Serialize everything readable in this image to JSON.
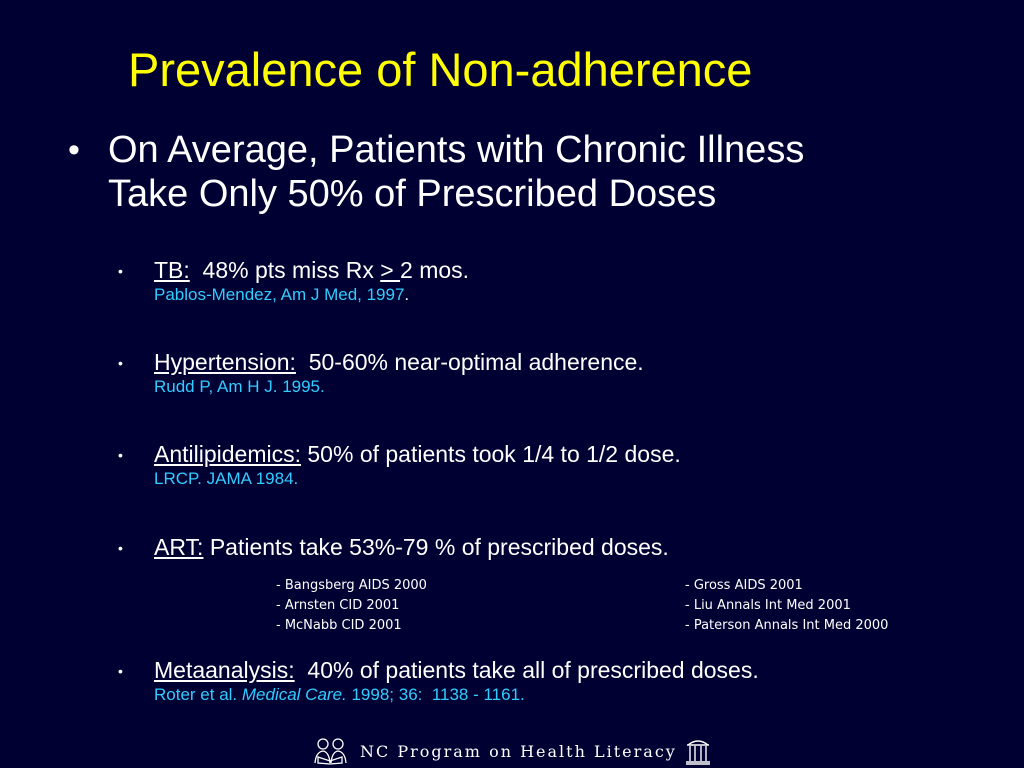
{
  "title": "Prevalence of Non-adherence",
  "main_bullet": {
    "line1": "On Average, Patients with Chronic Illness",
    "line2": "Take Only 50% of Prescribed Doses"
  },
  "items": [
    {
      "head": "TB:",
      "text_a": "  48% pts miss Rx ",
      "text_ge": "> ",
      "text_b": "2 mos.",
      "cite": "Pablos-Mendez, Am J Med, 1997",
      "cite_suffix": "."
    },
    {
      "head": "Hypertension:",
      "text": "  50-60% near-optimal adherence.",
      "cite": "Rudd P, Am H J. 1995."
    },
    {
      "head": "Antilipidemics:",
      "text": " 50% of patients took 1/4 to 1/2 dose.",
      "cite": "LRCP. JAMA 1984."
    },
    {
      "head": "ART:",
      "text": " Patients take 53%-79 % of prescribed doses.",
      "refs_left": [
        "- Bangsberg AIDS 2000",
        "- Arnsten CID 2001",
        "- McNabb CID 2001"
      ],
      "refs_right": [
        "- Gross AIDS 2001",
        "- Liu Annals Int Med 2001",
        "- Paterson Annals Int Med 2000"
      ]
    },
    {
      "head": "Metaanalysis:",
      "text": "  40% of patients take all of prescribed doses.",
      "cite_a": "Roter et al. ",
      "cite_journal": "Medical Care.",
      "cite_b": " 1998; 36:  1138 - 1161."
    }
  ],
  "footer": {
    "text": "NC Program on Health Literacy",
    "logo_left_icon": "readers-icon",
    "logo_right_icon": "old-well-icon"
  },
  "colors": {
    "background": "#000033",
    "title": "#ffff00",
    "citation": "#33ccff",
    "text": "#ffffff"
  }
}
